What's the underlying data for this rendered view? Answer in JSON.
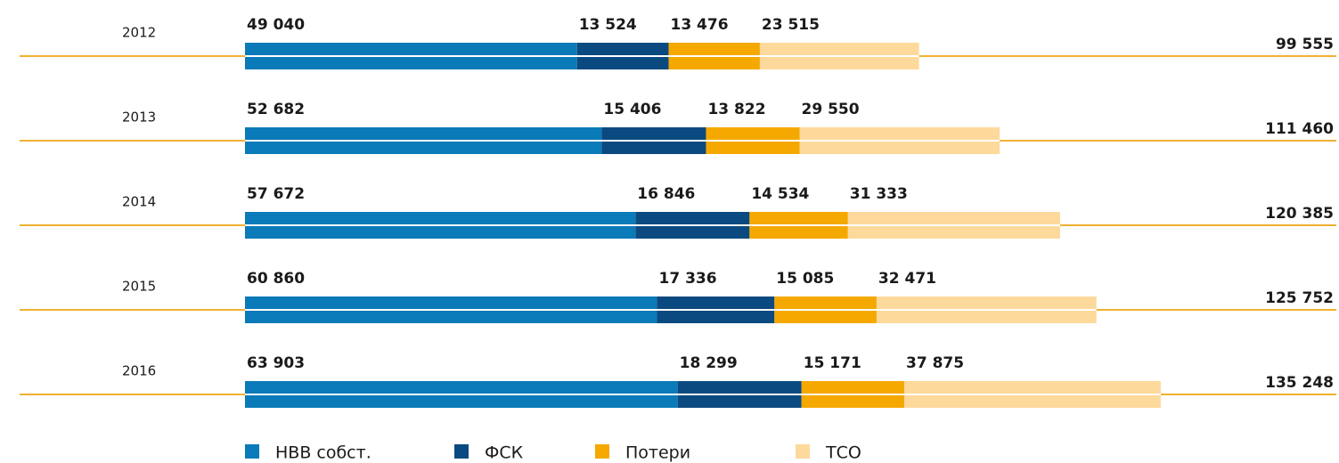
{
  "chart_data": {
    "type": "stacked-bar-horizontal",
    "categories": [
      "2012",
      "2013",
      "2014",
      "2015",
      "2016"
    ],
    "series": [
      {
        "name": "НВВ собст.",
        "color": "#0a7ab8",
        "values": [
          49040,
          52682,
          57672,
          60860,
          63903
        ],
        "value_labels": [
          "49 040",
          "52 682",
          "57 672",
          "60 860",
          "63 903"
        ]
      },
      {
        "name": "ФСК",
        "color": "#0b4a80",
        "values": [
          13524,
          15406,
          16846,
          17336,
          18299
        ],
        "value_labels": [
          "13 524",
          "15 406",
          "16 846",
          "17 336",
          "18 299"
        ]
      },
      {
        "name": "Потери",
        "color": "#f5a800",
        "values": [
          13476,
          13822,
          14534,
          15085,
          15171
        ],
        "value_labels": [
          "13 476",
          "13 822",
          "14 534",
          "15 085",
          "15 171"
        ]
      },
      {
        "name": "ТСО",
        "color": "#fdd99b",
        "values": [
          23515,
          29550,
          31333,
          32471,
          37875
        ],
        "value_labels": [
          "23 515",
          "29 550",
          "31 333",
          "32 471",
          "37 875"
        ]
      }
    ],
    "totals": [
      99555,
      111460,
      120385,
      125752,
      135248
    ],
    "total_labels": [
      "99 555",
      "111 460",
      "120 385",
      "125 752",
      "135 248"
    ]
  }
}
